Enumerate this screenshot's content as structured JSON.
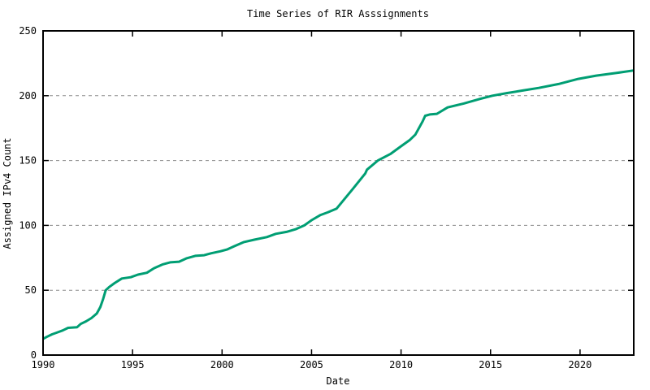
{
  "chart_data": {
    "type": "line",
    "title": "Time Series of RIR Asssignments",
    "xlabel": "Date",
    "ylabel": "Assigned IPv4 Count",
    "xlim": [
      1990,
      2023
    ],
    "ylim": [
      0,
      250
    ],
    "xticks": [
      1990,
      1995,
      2000,
      2005,
      2010,
      2015,
      2020
    ],
    "yticks": [
      0,
      50,
      100,
      150,
      200,
      250
    ],
    "grid": "horizontal dashed gridlines at y ticks, no vertical grid",
    "legend": "none",
    "colors": {
      "line": "#009E73",
      "grid": "#8c8c8c",
      "axis": "#000000",
      "background": "#ffffff"
    },
    "series": [
      {
        "name": "Assigned IPv4 Count",
        "color": "#009E73",
        "points": [
          [
            1990.0,
            12.5
          ],
          [
            1990.2,
            14
          ],
          [
            1990.5,
            16
          ],
          [
            1990.8,
            17.5
          ],
          [
            1991.1,
            19
          ],
          [
            1991.4,
            21
          ],
          [
            1991.9,
            21.5
          ],
          [
            1992.1,
            24
          ],
          [
            1992.4,
            26
          ],
          [
            1992.7,
            28.5
          ],
          [
            1993.0,
            32
          ],
          [
            1993.2,
            37
          ],
          [
            1993.35,
            43
          ],
          [
            1993.5,
            50
          ],
          [
            1993.7,
            52.5
          ],
          [
            1994.0,
            55.5
          ],
          [
            1994.4,
            59
          ],
          [
            1994.9,
            60
          ],
          [
            1995.3,
            62
          ],
          [
            1995.8,
            63.5
          ],
          [
            1996.2,
            67
          ],
          [
            1996.7,
            70
          ],
          [
            1997.1,
            71.5
          ],
          [
            1997.6,
            72
          ],
          [
            1998.0,
            74.5
          ],
          [
            1998.5,
            76.5
          ],
          [
            1999.0,
            77
          ],
          [
            1999.4,
            78.5
          ],
          [
            1999.9,
            80
          ],
          [
            2000.3,
            81.5
          ],
          [
            2000.7,
            84
          ],
          [
            2001.2,
            87
          ],
          [
            2001.8,
            89
          ],
          [
            2002.5,
            91
          ],
          [
            2003.0,
            93.5
          ],
          [
            2003.6,
            95
          ],
          [
            2004.1,
            97
          ],
          [
            2004.6,
            100
          ],
          [
            2005.0,
            104
          ],
          [
            2005.5,
            108
          ],
          [
            2005.9,
            110
          ],
          [
            2006.4,
            113
          ],
          [
            2007.0,
            123
          ],
          [
            2007.3,
            128
          ],
          [
            2008.0,
            140
          ],
          [
            2008.1,
            143
          ],
          [
            2008.7,
            150
          ],
          [
            2009.4,
            155
          ],
          [
            2010.0,
            161
          ],
          [
            2010.5,
            166
          ],
          [
            2010.8,
            170
          ],
          [
            2011.0,
            175
          ],
          [
            2011.2,
            180
          ],
          [
            2011.35,
            184.5
          ],
          [
            2011.6,
            185.5
          ],
          [
            2012.0,
            186
          ],
          [
            2012.6,
            191
          ],
          [
            2013.5,
            194
          ],
          [
            2014.4,
            197.5
          ],
          [
            2015.1,
            200
          ],
          [
            2015.9,
            202
          ],
          [
            2016.8,
            204
          ],
          [
            2017.7,
            206
          ],
          [
            2018.8,
            209
          ],
          [
            2019.9,
            213
          ],
          [
            2020.9,
            215.5
          ],
          [
            2022.0,
            217.5
          ],
          [
            2023.0,
            219.5
          ]
        ]
      }
    ]
  }
}
